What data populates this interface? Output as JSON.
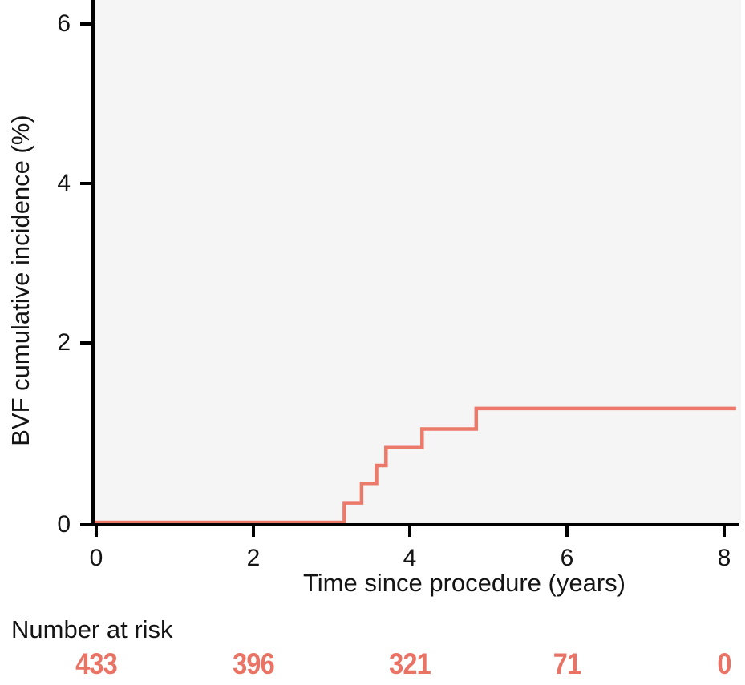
{
  "figure": {
    "y_axis_label": "BVF cumulative incidence (%)",
    "x_axis_label": "Time since procedure (years)",
    "y_tick_labels": [
      "0",
      "2",
      "4",
      "6"
    ],
    "x_tick_labels": [
      "0",
      "2",
      "4",
      "6",
      "8"
    ],
    "number_at_risk_label": "Number at risk",
    "number_at_risk_values": [
      "433",
      "396",
      "321",
      "71",
      "0"
    ]
  },
  "colors": {
    "curve": "#EC7A6A",
    "risk_numbers": "#E97365",
    "axis": "#000000",
    "plot_background": "#F5F5F5",
    "text": "#141414"
  },
  "chart_data": {
    "type": "line",
    "subtype": "cumulative-incidence-step",
    "title": "",
    "xlabel": "Time since procedure (years)",
    "ylabel": "BVF cumulative incidence (%)",
    "xlim": [
      0,
      8.2
    ],
    "ylim": [
      0,
      6.4
    ],
    "x_ticks": [
      0,
      2,
      4,
      6,
      8
    ],
    "y_ticks": [
      0,
      2,
      4,
      6
    ],
    "grid": false,
    "legend": "none",
    "series": [
      {
        "name": "BVF cumulative incidence",
        "step_points": [
          {
            "t": 0.0,
            "v": 0.0
          },
          {
            "t": 3.16,
            "v": 0.22
          },
          {
            "t": 3.38,
            "v": 0.44
          },
          {
            "t": 3.57,
            "v": 0.64
          },
          {
            "t": 3.69,
            "v": 0.84
          },
          {
            "t": 4.15,
            "v": 1.05
          },
          {
            "t": 4.84,
            "v": 1.28
          },
          {
            "t": 8.15,
            "v": 1.28
          }
        ]
      }
    ],
    "number_at_risk": {
      "label": "Number at risk",
      "times": [
        0,
        2,
        4,
        6,
        8
      ],
      "counts": [
        433,
        396,
        321,
        71,
        0
      ]
    }
  }
}
